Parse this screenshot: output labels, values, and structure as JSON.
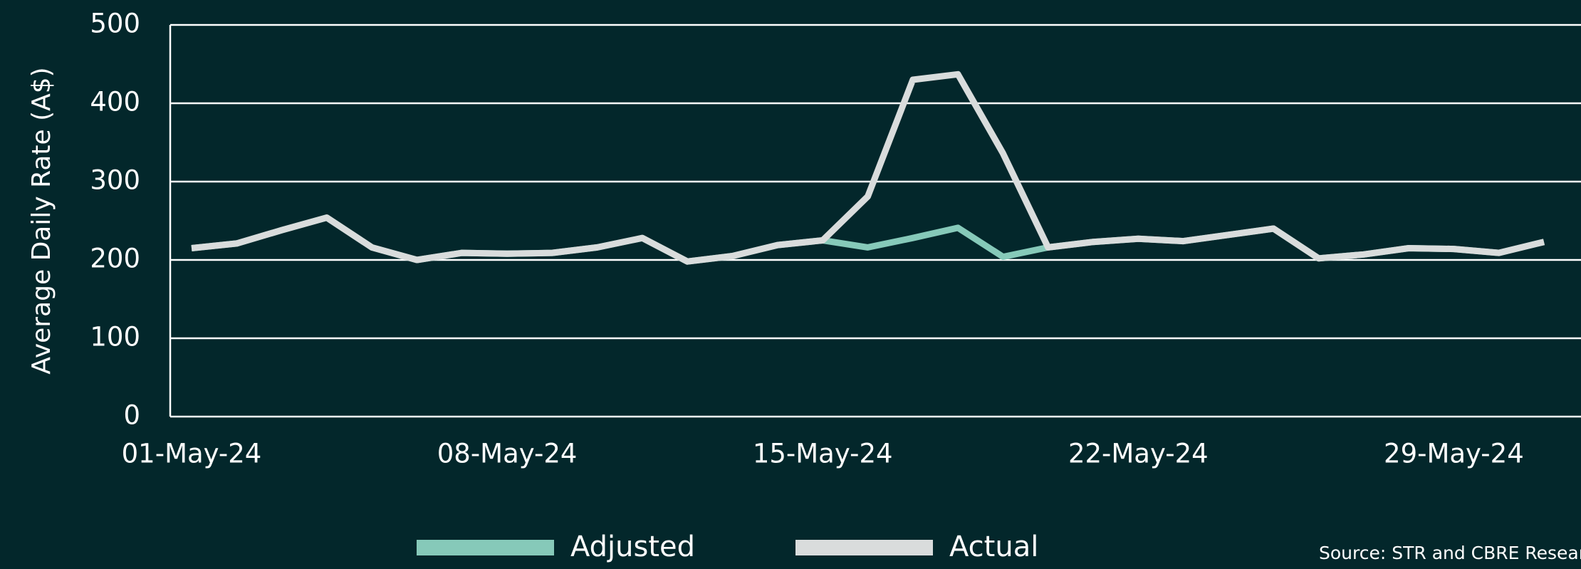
{
  "chart_data": {
    "type": "line",
    "y_label": "Average Daily Rate (A$)",
    "categories": [
      "01-May-24",
      null,
      null,
      null,
      null,
      null,
      null,
      "08-May-24",
      null,
      null,
      null,
      null,
      null,
      null,
      "15-May-24",
      null,
      null,
      null,
      null,
      null,
      null,
      "22-May-24",
      null,
      null,
      null,
      null,
      null,
      null,
      "29-May-24",
      null,
      null
    ],
    "series": [
      {
        "name": "Adjusted",
        "color": "#86c9b9",
        "values": [
          215,
          221,
          238,
          254,
          216,
          200,
          209,
          208,
          209,
          216,
          228,
          198,
          205,
          219,
          225,
          216,
          228,
          241,
          204,
          216,
          223,
          227,
          224,
          232,
          240,
          202,
          207,
          215,
          214,
          209,
          223
        ]
      },
      {
        "name": "Actual",
        "color": "#d9dcdc",
        "values": [
          215,
          221,
          238,
          254,
          216,
          200,
          209,
          208,
          209,
          216,
          228,
          198,
          205,
          219,
          225,
          281,
          430,
          437,
          336,
          216,
          223,
          227,
          224,
          232,
          240,
          202,
          207,
          215,
          214,
          209,
          223
        ]
      }
    ],
    "ylim": [
      0,
      500
    ],
    "yticks": [
      0,
      100,
      200,
      300,
      400,
      500
    ],
    "grid": true,
    "legend": "bottom",
    "source": "Source: STR and CBRE Research"
  }
}
